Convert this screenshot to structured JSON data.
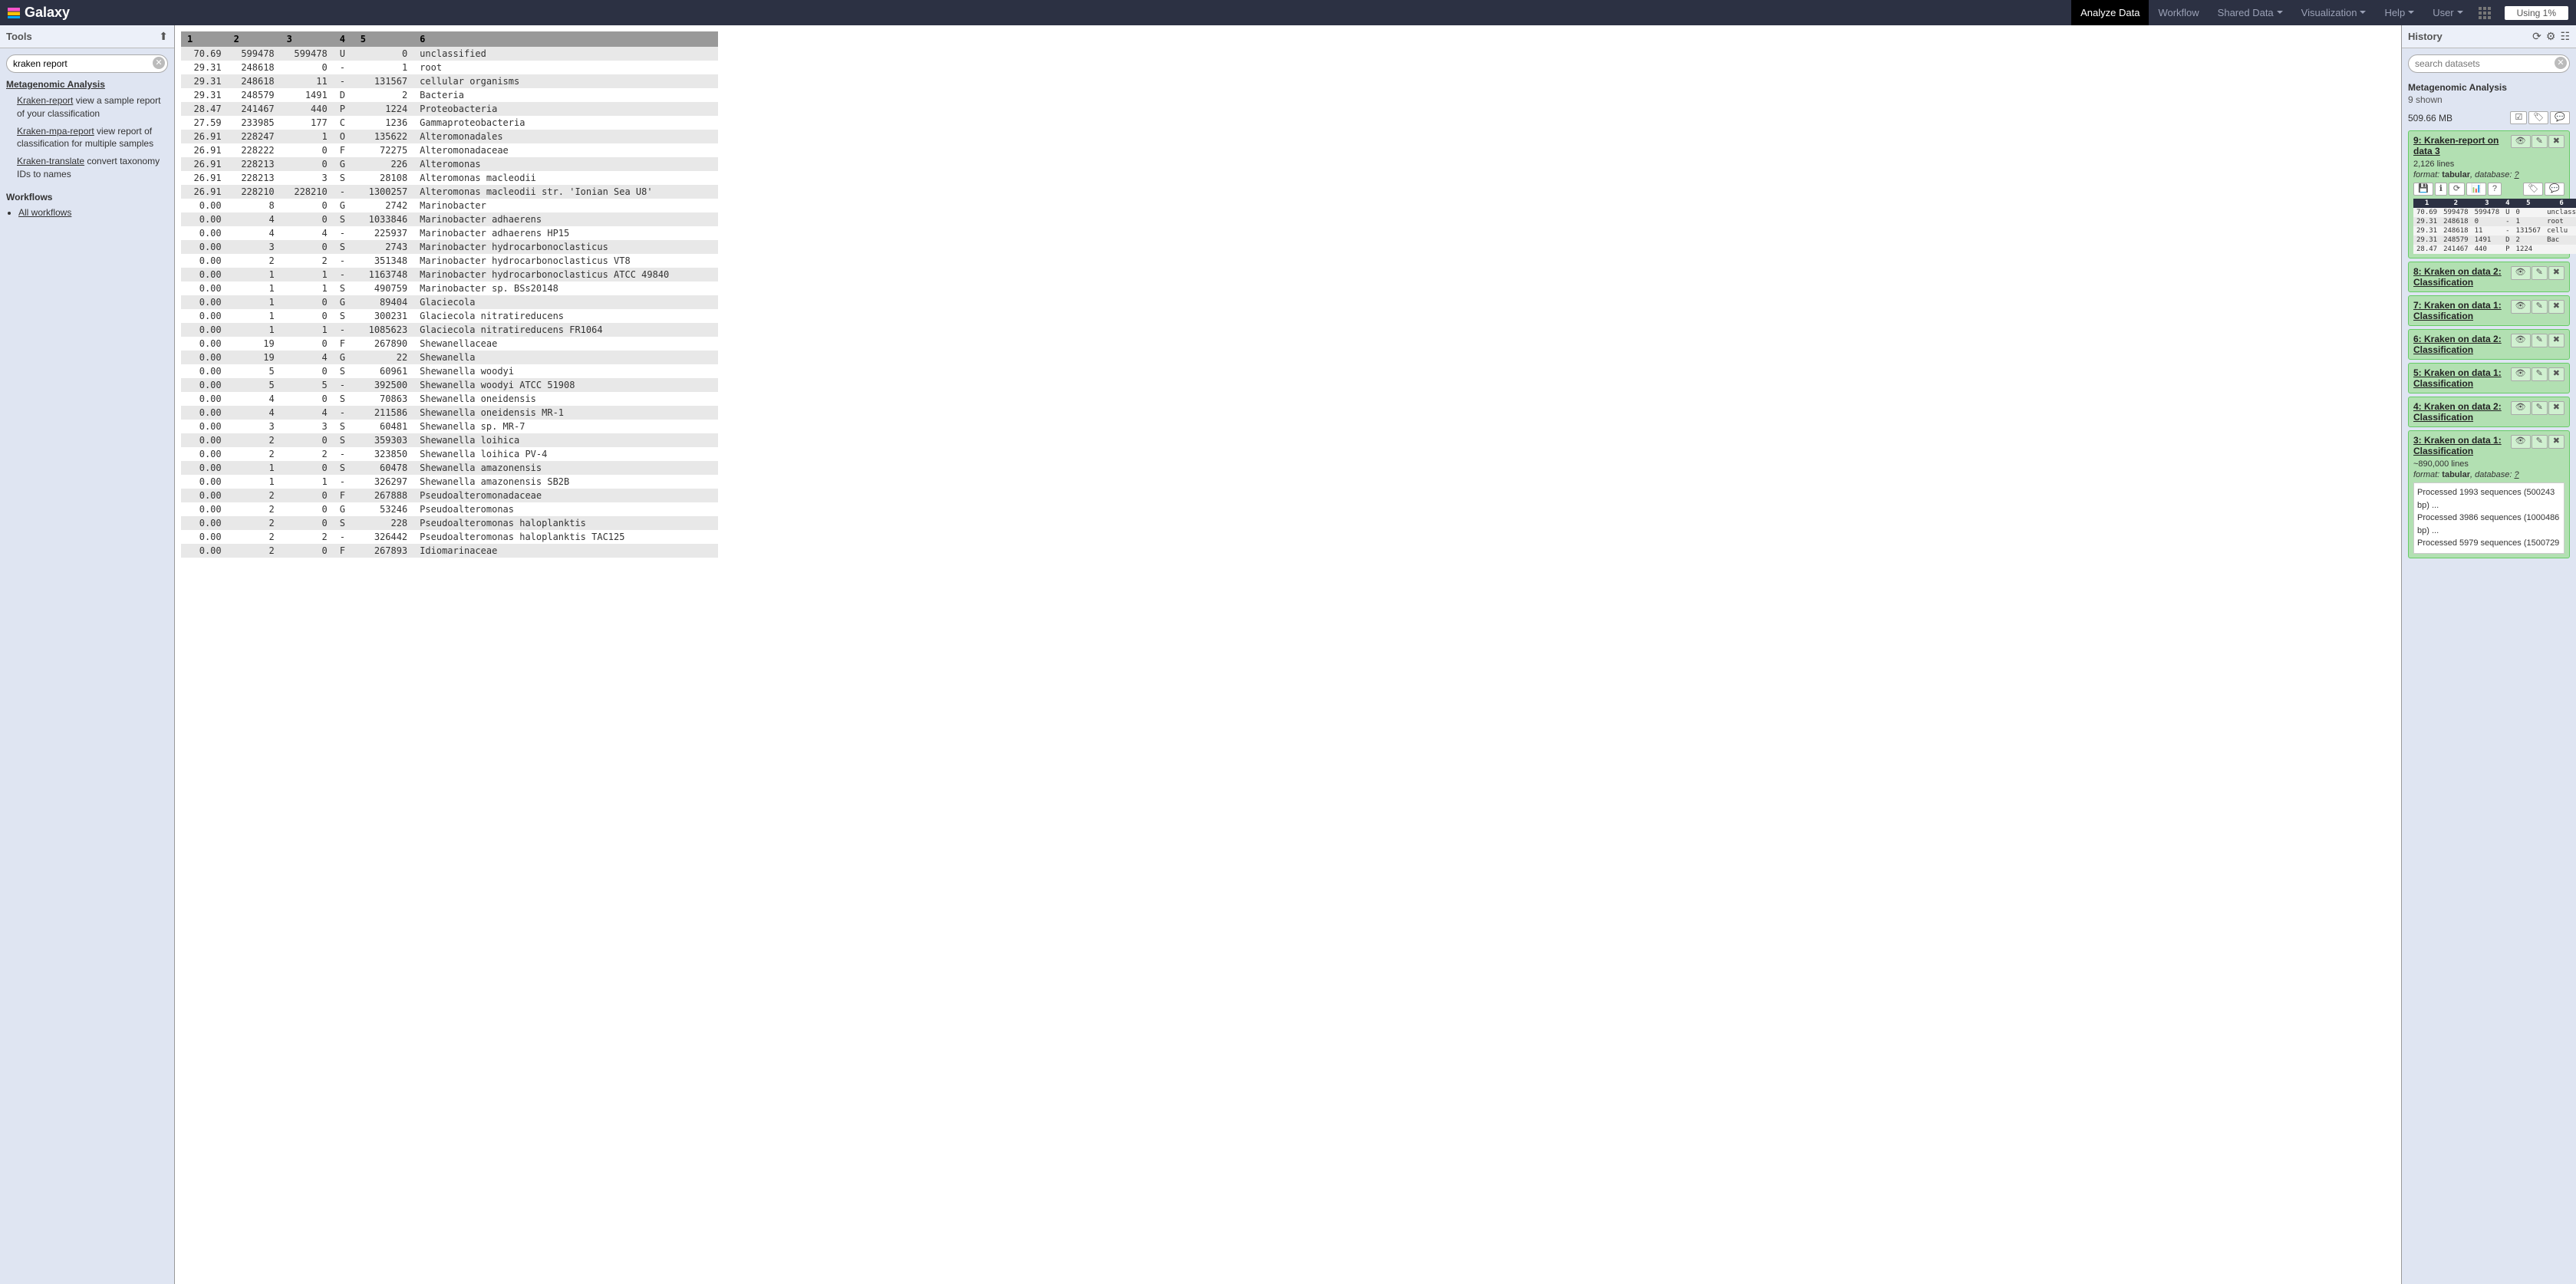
{
  "navbar": {
    "brand": "Galaxy",
    "items": [
      "Analyze Data",
      "Workflow",
      "Shared Data",
      "Visualization",
      "Help",
      "User"
    ],
    "active": 0,
    "quota": "Using 1%"
  },
  "tools": {
    "title": "Tools",
    "search_value": "kraken report",
    "section": "Metagenomic Analysis",
    "items": [
      {
        "link": "Kraken-report",
        "desc": " view a sample report of your classification"
      },
      {
        "link": "Kraken-mpa-report",
        "desc": " view report of classification for multiple samples"
      },
      {
        "link": "Kraken-translate",
        "desc": " convert taxonomy IDs to names"
      }
    ],
    "workflows_hd": "Workflows",
    "all_workflows": "All workflows"
  },
  "table": {
    "columns": [
      "1",
      "2",
      "3",
      "4",
      "5",
      "6"
    ],
    "col_align": [
      "right",
      "right",
      "right",
      "left",
      "right",
      "left"
    ],
    "rows": [
      [
        "70.69",
        "599478",
        "599478",
        "U",
        "0",
        "unclassified"
      ],
      [
        "29.31",
        "248618",
        "0",
        "-",
        "1",
        "root"
      ],
      [
        "29.31",
        "248618",
        "11",
        "-",
        "131567",
        "cellular organisms"
      ],
      [
        "29.31",
        "248579",
        "1491",
        "D",
        "2",
        "Bacteria"
      ],
      [
        "28.47",
        "241467",
        "440",
        "P",
        "1224",
        "Proteobacteria"
      ],
      [
        "27.59",
        "233985",
        "177",
        "C",
        "1236",
        "Gammaproteobacteria"
      ],
      [
        "26.91",
        "228247",
        "1",
        "O",
        "135622",
        "Alteromonadales"
      ],
      [
        "26.91",
        "228222",
        "0",
        "F",
        "72275",
        "Alteromonadaceae"
      ],
      [
        "26.91",
        "228213",
        "0",
        "G",
        "226",
        "Alteromonas"
      ],
      [
        "26.91",
        "228213",
        "3",
        "S",
        "28108",
        "Alteromonas macleodii"
      ],
      [
        "26.91",
        "228210",
        "228210",
        "-",
        "1300257",
        "Alteromonas macleodii str. 'Ionian Sea U8'"
      ],
      [
        "0.00",
        "8",
        "0",
        "G",
        "2742",
        "Marinobacter"
      ],
      [
        "0.00",
        "4",
        "0",
        "S",
        "1033846",
        "Marinobacter adhaerens"
      ],
      [
        "0.00",
        "4",
        "4",
        "-",
        "225937",
        "Marinobacter adhaerens HP15"
      ],
      [
        "0.00",
        "3",
        "0",
        "S",
        "2743",
        "Marinobacter hydrocarbonoclasticus"
      ],
      [
        "0.00",
        "2",
        "2",
        "-",
        "351348",
        "Marinobacter hydrocarbonoclasticus VT8"
      ],
      [
        "0.00",
        "1",
        "1",
        "-",
        "1163748",
        "Marinobacter hydrocarbonoclasticus ATCC 49840"
      ],
      [
        "0.00",
        "1",
        "1",
        "S",
        "490759",
        "Marinobacter sp. BSs20148"
      ],
      [
        "0.00",
        "1",
        "0",
        "G",
        "89404",
        "Glaciecola"
      ],
      [
        "0.00",
        "1",
        "0",
        "S",
        "300231",
        "Glaciecola nitratireducens"
      ],
      [
        "0.00",
        "1",
        "1",
        "-",
        "1085623",
        "Glaciecola nitratireducens FR1064"
      ],
      [
        "0.00",
        "19",
        "0",
        "F",
        "267890",
        "Shewanellaceae"
      ],
      [
        "0.00",
        "19",
        "4",
        "G",
        "22",
        "Shewanella"
      ],
      [
        "0.00",
        "5",
        "0",
        "S",
        "60961",
        "Shewanella woodyi"
      ],
      [
        "0.00",
        "5",
        "5",
        "-",
        "392500",
        "Shewanella woodyi ATCC 51908"
      ],
      [
        "0.00",
        "4",
        "0",
        "S",
        "70863",
        "Shewanella oneidensis"
      ],
      [
        "0.00",
        "4",
        "4",
        "-",
        "211586",
        "Shewanella oneidensis MR-1"
      ],
      [
        "0.00",
        "3",
        "3",
        "S",
        "60481",
        "Shewanella sp. MR-7"
      ],
      [
        "0.00",
        "2",
        "0",
        "S",
        "359303",
        "Shewanella loihica"
      ],
      [
        "0.00",
        "2",
        "2",
        "-",
        "323850",
        "Shewanella loihica PV-4"
      ],
      [
        "0.00",
        "1",
        "0",
        "S",
        "60478",
        "Shewanella amazonensis"
      ],
      [
        "0.00",
        "1",
        "1",
        "-",
        "326297",
        "Shewanella amazonensis SB2B"
      ],
      [
        "0.00",
        "2",
        "0",
        "F",
        "267888",
        "Pseudoalteromonadaceae"
      ],
      [
        "0.00",
        "2",
        "0",
        "G",
        "53246",
        "Pseudoalteromonas"
      ],
      [
        "0.00",
        "2",
        "0",
        "S",
        "228",
        "Pseudoalteromonas haloplanktis"
      ],
      [
        "0.00",
        "2",
        "2",
        "-",
        "326442",
        "Pseudoalteromonas haloplanktis TAC125"
      ],
      [
        "0.00",
        "2",
        "0",
        "F",
        "267893",
        "Idiomarinaceae"
      ]
    ]
  },
  "history": {
    "title": "History",
    "search_placeholder": "search datasets",
    "name": "Metagenomic Analysis",
    "shown": "9 shown",
    "size": "509.66 MB",
    "datasets": [
      {
        "title": "9: Kraken-report on data 3",
        "expanded": true,
        "lines": "2,126 lines",
        "format": "tabular",
        "db": "?",
        "preview_cols": [
          "1",
          "2",
          "3",
          "4",
          "5",
          "6"
        ],
        "preview_rows": [
          [
            "70.69",
            "599478",
            "599478",
            "U",
            "0",
            "unclass"
          ],
          [
            "29.31",
            "248618",
            "0",
            "-",
            "1",
            "root"
          ],
          [
            "29.31",
            "248618",
            "11",
            "-",
            "131567",
            "cellu"
          ],
          [
            "29.31",
            "248579",
            "1491",
            "D",
            "2",
            "Bac"
          ],
          [
            "28.47",
            "241467",
            "440",
            "P",
            "1224",
            ""
          ]
        ]
      },
      {
        "title": "8: Kraken on data 2: Classification"
      },
      {
        "title": "7: Kraken on data 1: Classification"
      },
      {
        "title": "6: Kraken on data 2: Classification"
      },
      {
        "title": "5: Kraken on data 1: Classification"
      },
      {
        "title": "4: Kraken on data 2: Classification"
      },
      {
        "title": "3: Kraken on data 1: Classification",
        "expanded": true,
        "lines": "~890,000 lines",
        "format": "tabular",
        "db": "?",
        "peek": [
          "Processed 1993 sequences (500243 bp) ...",
          "Processed 3986 sequences (1000486 bp) ...",
          "Processed 5979 sequences (1500729"
        ]
      }
    ]
  },
  "icons": {
    "upload": "⬆",
    "refresh": "⟳",
    "gear": "⚙",
    "cols": "☷",
    "eye": "👁",
    "edit": "✎",
    "del": "✖",
    "tag": "🏷",
    "comment": "💬",
    "save": "💾",
    "info": "ℹ",
    "chart": "📊",
    "help": "?",
    "check": "☑"
  }
}
